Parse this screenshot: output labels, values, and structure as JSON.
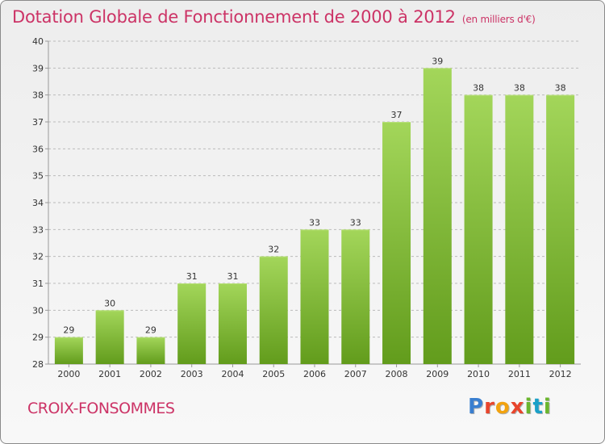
{
  "chart_data": {
    "type": "bar",
    "title": "Dotation Globale de Fonctionnement de 2000 à 2012",
    "subtitle": "(en milliers d'€)",
    "categories": [
      "2000",
      "2001",
      "2002",
      "2003",
      "2004",
      "2005",
      "2006",
      "2007",
      "2008",
      "2009",
      "2010",
      "2011",
      "2012"
    ],
    "values": [
      29,
      30,
      29,
      31,
      31,
      32,
      33,
      33,
      37,
      39,
      38,
      38,
      38
    ],
    "xlabel": "",
    "ylabel": "",
    "ylim": [
      28,
      40
    ],
    "yticks": [
      28,
      29,
      30,
      31,
      32,
      33,
      34,
      35,
      36,
      37,
      38,
      39,
      40
    ],
    "grid": true,
    "bar_color_top": "#a3d65a",
    "bar_color_bottom": "#629c1c"
  },
  "footer": {
    "commune": "CROIX-FONSOMMES",
    "logo": "Proxiti"
  },
  "colors": {
    "title": "#cc3366",
    "grid": "#bbbbbb",
    "axis": "#999999"
  }
}
